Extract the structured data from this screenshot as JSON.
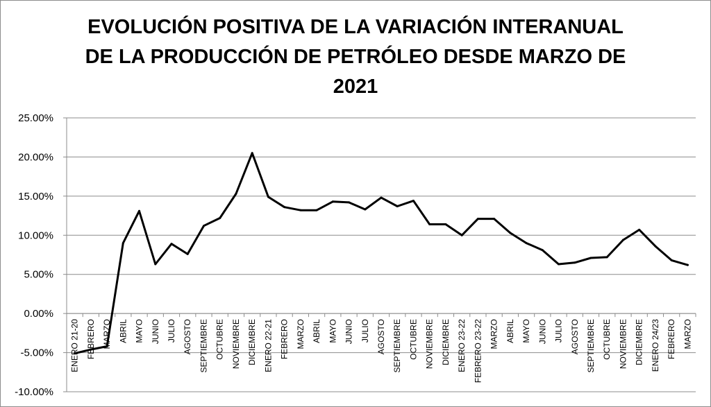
{
  "title_lines": [
    "EVOLUCIÓN POSITIVA DE LA VARIACIÓN INTERANUAL",
    "DE LA PRODUCCIÓN DE PETRÓLEO DESDE MARZO DE",
    "2021"
  ],
  "chart_data": {
    "type": "line",
    "title": "EVOLUCIÓN POSITIVA DE LA VARIACIÓN INTERANUAL DE LA PRODUCCIÓN DE PETRÓLEO DESDE MARZO DE 2021",
    "xlabel": "",
    "ylabel": "",
    "ylim": [
      -10,
      25
    ],
    "yticks": [
      25,
      20,
      15,
      10,
      5,
      0,
      -5,
      -10
    ],
    "ytick_labels": [
      "25.00%",
      "20.00%",
      "15.00%",
      "10.00%",
      "5.00%",
      "0.00%",
      "-5.00%",
      "-10.00%"
    ],
    "grid": true,
    "legend": "none",
    "line_color": "#000000",
    "categories": [
      "ENERO 21-20",
      "FEBRERO",
      "MARZO",
      "ABRIL",
      "MAYO",
      "JUNIO",
      "JULIO",
      "AGOSTO",
      "SEPTIEMBRE",
      "OCTUBRE",
      "NOVIEMBRE",
      "DICIEMBRE",
      "ENERO 22-21",
      "FEBRERO",
      "MARZO",
      "ABRIL",
      "MAYO",
      "JUNIO",
      "JULIO",
      "AGOSTO",
      "SEPTIEMBRE",
      "OCTUBRE",
      "NOVIEMBRE",
      "DICIEMBRE",
      "ENERO 23-22",
      "FEBRERO 23-22",
      "MARZO",
      "ABRIL",
      "MAYO",
      "JUNIO",
      "JULIO",
      "AGOSTO",
      "SEPTIEMBRE",
      "OCTUBRE",
      "NOVIEMBRE",
      "DICIEMBRE",
      "ENERO 24/23",
      "FEBRERO",
      "MARZO"
    ],
    "series": [
      {
        "values": [
          -5.1,
          -4.6,
          -4.2,
          9.0,
          13.1,
          6.3,
          8.9,
          7.6,
          11.2,
          12.2,
          15.3,
          20.5,
          14.9,
          13.6,
          13.2,
          13.2,
          14.3,
          14.2,
          13.3,
          14.8,
          13.7,
          14.4,
          11.4,
          11.4,
          10.0,
          12.1,
          12.1,
          10.3,
          9.0,
          8.1,
          6.3,
          6.5,
          7.1,
          7.2,
          9.4,
          10.7,
          8.6,
          6.8,
          6.2
        ]
      }
    ]
  }
}
